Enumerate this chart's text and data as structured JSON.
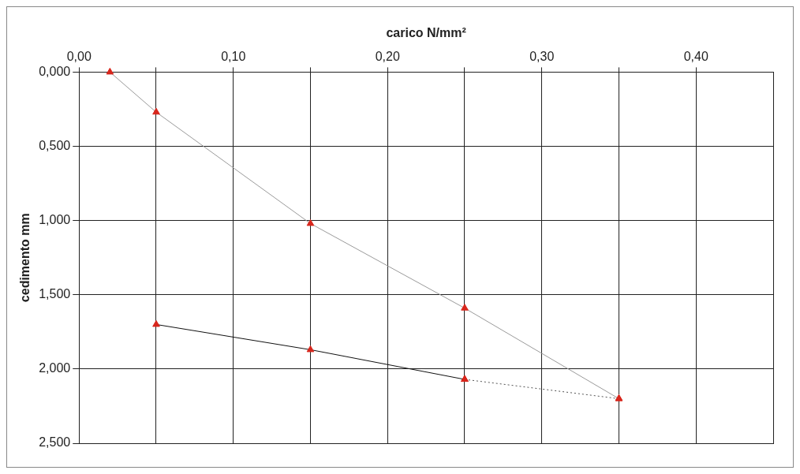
{
  "chart_data": {
    "type": "line",
    "xlabel": "carico N/mm²",
    "ylabel": "cedimento mm",
    "xlim": [
      0,
      0.45
    ],
    "xticks": [
      {
        "value": 0,
        "label": "0,00"
      },
      {
        "value": 0.05,
        "label": null
      },
      {
        "value": 0.1,
        "label": "0,10"
      },
      {
        "value": 0.15,
        "label": null
      },
      {
        "value": 0.2,
        "label": "0,20"
      },
      {
        "value": 0.25,
        "label": null
      },
      {
        "value": 0.3,
        "label": "0,30"
      },
      {
        "value": 0.35,
        "label": null
      },
      {
        "value": 0.4,
        "label": "0,40"
      }
    ],
    "ylim": [
      2.5,
      0
    ],
    "yticks": [
      {
        "value": 0,
        "label": "0,000"
      },
      {
        "value": 0.5,
        "label": "0,500"
      },
      {
        "value": 1,
        "label": "1,000"
      },
      {
        "value": 1.5,
        "label": "1,500"
      },
      {
        "value": 2,
        "label": "2,000"
      },
      {
        "value": 2.5,
        "label": "2,500"
      }
    ],
    "grid": true,
    "legend": false,
    "marker": "triangle",
    "series": [
      {
        "color": "#9a9a9a",
        "x": [
          0.02,
          0.05,
          0.15,
          0.25,
          0.35
        ],
        "values": [
          0,
          0.27,
          1.02,
          1.59,
          2.2
        ],
        "line_style": "solid"
      },
      {
        "color": "#555555",
        "x": [
          0.35,
          0.25
        ],
        "values": [
          2.2,
          2.07
        ],
        "line_style": "dotted"
      },
      {
        "color": "#111111",
        "x": [
          0.25,
          0.15,
          0.05
        ],
        "values": [
          2.07,
          1.87,
          1.7
        ],
        "line_style": "solid"
      }
    ]
  }
}
